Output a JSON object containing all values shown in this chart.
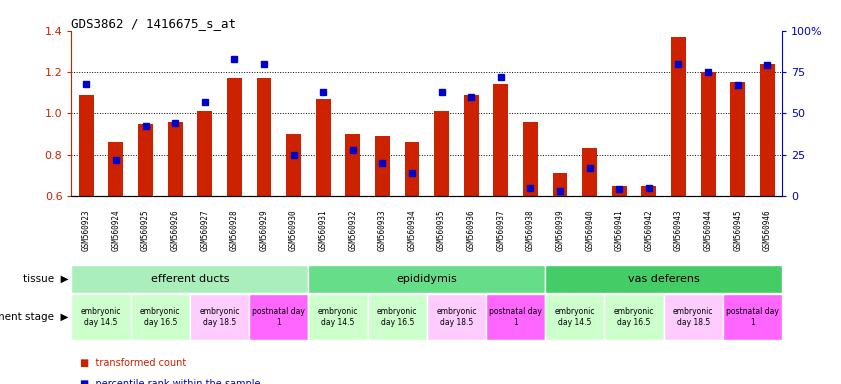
{
  "title": "GDS3862 / 1416675_s_at",
  "samples": [
    "GSM560923",
    "GSM560924",
    "GSM560925",
    "GSM560926",
    "GSM560927",
    "GSM560928",
    "GSM560929",
    "GSM560930",
    "GSM560931",
    "GSM560932",
    "GSM560933",
    "GSM560934",
    "GSM560935",
    "GSM560936",
    "GSM560937",
    "GSM560938",
    "GSM560939",
    "GSM560940",
    "GSM560941",
    "GSM560942",
    "GSM560943",
    "GSM560944",
    "GSM560945",
    "GSM560946"
  ],
  "transformed_count": [
    1.09,
    0.86,
    0.95,
    0.96,
    1.01,
    1.17,
    1.17,
    0.9,
    1.07,
    0.9,
    0.89,
    0.86,
    1.01,
    1.09,
    1.14,
    0.96,
    0.71,
    0.83,
    0.65,
    0.65,
    1.37,
    1.2,
    1.15,
    1.24
  ],
  "percentile_rank": [
    68,
    22,
    42,
    44,
    57,
    83,
    80,
    25,
    63,
    28,
    20,
    14,
    63,
    60,
    72,
    5,
    3,
    17,
    4,
    5,
    80,
    75,
    67,
    79
  ],
  "bar_color": "#cc2200",
  "marker_color": "#0000cc",
  "bar_width": 0.5,
  "ylim_left": [
    0.6,
    1.4
  ],
  "ylim_right": [
    0,
    100
  ],
  "yticks_left": [
    0.6,
    0.8,
    1.0,
    1.2,
    1.4
  ],
  "yticks_right": [
    0,
    25,
    50,
    75,
    100
  ],
  "ytick_labels_right": [
    "0",
    "25",
    "50",
    "75",
    "100%"
  ],
  "dotted_lines": [
    0.8,
    1.0,
    1.2
  ],
  "tissues": [
    {
      "label": "efferent ducts",
      "start": 0,
      "end": 8,
      "color": "#aaeebb"
    },
    {
      "label": "epididymis",
      "start": 8,
      "end": 16,
      "color": "#66dd88"
    },
    {
      "label": "vas deferens",
      "start": 16,
      "end": 24,
      "color": "#44cc66"
    }
  ],
  "dev_stages": [
    {
      "label": "embryonic\nday 14.5",
      "start": 0,
      "end": 2,
      "color": "#ccffcc"
    },
    {
      "label": "embryonic\nday 16.5",
      "start": 2,
      "end": 4,
      "color": "#ccffcc"
    },
    {
      "label": "embryonic\nday 18.5",
      "start": 4,
      "end": 6,
      "color": "#ffccff"
    },
    {
      "label": "postnatal day\n1",
      "start": 6,
      "end": 8,
      "color": "#ff66ff"
    },
    {
      "label": "embryonic\nday 14.5",
      "start": 8,
      "end": 10,
      "color": "#ccffcc"
    },
    {
      "label": "embryonic\nday 16.5",
      "start": 10,
      "end": 12,
      "color": "#ccffcc"
    },
    {
      "label": "embryonic\nday 18.5",
      "start": 12,
      "end": 14,
      "color": "#ffccff"
    },
    {
      "label": "postnatal day\n1",
      "start": 14,
      "end": 16,
      "color": "#ff66ff"
    },
    {
      "label": "embryonic\nday 14.5",
      "start": 16,
      "end": 18,
      "color": "#ccffcc"
    },
    {
      "label": "embryonic\nday 16.5",
      "start": 18,
      "end": 20,
      "color": "#ccffcc"
    },
    {
      "label": "embryonic\nday 18.5",
      "start": 20,
      "end": 22,
      "color": "#ffccff"
    },
    {
      "label": "postnatal day\n1",
      "start": 22,
      "end": 24,
      "color": "#ff66ff"
    }
  ],
  "xtick_bg": "#dddddd",
  "background_color": "#ffffff"
}
